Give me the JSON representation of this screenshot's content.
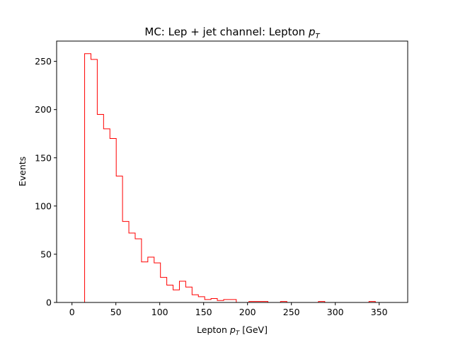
{
  "chart_data": {
    "type": "histogram",
    "title": {
      "main": "MC: Lep + jet channel: Lepton ",
      "var": "p",
      "sub": "T"
    },
    "xlabel": {
      "main": "Lepton ",
      "var": "p",
      "sub": "T",
      "unit": " [GeV]"
    },
    "ylabel": "Events",
    "xlim": [
      -17.5,
      382.5
    ],
    "ylim": [
      0,
      271
    ],
    "xticks": [
      0,
      50,
      100,
      150,
      200,
      250,
      300,
      350
    ],
    "yticks": [
      0,
      50,
      100,
      150,
      200,
      250
    ],
    "grid": false,
    "color": "#ff0000",
    "bin_width": 7.2,
    "bin_edges_start": 0,
    "counts": [
      0,
      0,
      258,
      252,
      195,
      180,
      170,
      131,
      84,
      72,
      66,
      42,
      47,
      41,
      26,
      18,
      13,
      22,
      16,
      8,
      6,
      3,
      4,
      2,
      3,
      3,
      0,
      0,
      1,
      1,
      1,
      0,
      0,
      1,
      0,
      0,
      0,
      0,
      0,
      1,
      0,
      0,
      0,
      0,
      0,
      0,
      0,
      1,
      0,
      0
    ]
  }
}
